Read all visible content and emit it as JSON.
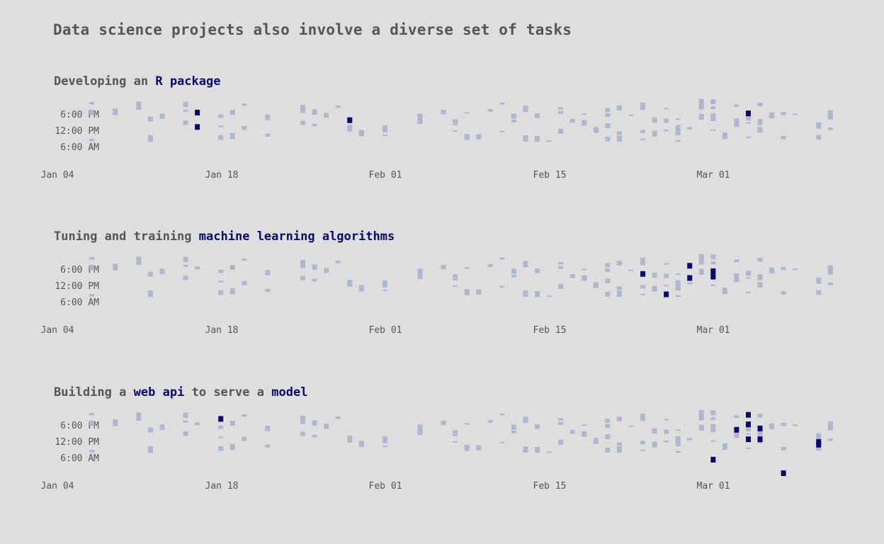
{
  "title": "Data science projects also involve a diverse set of tasks",
  "colors": {
    "background": "#dedede",
    "muted": "#b2b6cc",
    "highlight": "#0a0a6e",
    "text": "#555555"
  },
  "chart_data": [
    {
      "type": "scatter",
      "title_parts": [
        {
          "text": "Developing",
          "highlight": false
        },
        {
          "text": "an",
          "highlight": false
        },
        {
          "text": "R package",
          "highlight": true
        }
      ],
      "x_ticks": [
        "Jan 04",
        "Jan 18",
        "Feb 01",
        "Feb 15",
        "Mar 01"
      ],
      "y_ticks": [
        "6:00 PM",
        "12:00 PM",
        "6:00 AM"
      ],
      "highlight_days": [
        12,
        25,
        59
      ],
      "highlight_marks": [
        [
          12,
          18.8
        ],
        [
          12,
          13.5
        ],
        [
          25,
          16.0
        ],
        [
          59,
          18.5
        ]
      ]
    },
    {
      "type": "scatter",
      "title_parts": [
        {
          "text": "Tuning",
          "highlight": false
        },
        {
          "text": "and",
          "highlight": false
        },
        {
          "text": "training",
          "highlight": false
        },
        {
          "text": "machine",
          "highlight": true
        },
        {
          "text": "learning",
          "highlight": true
        },
        {
          "text": "algorithms",
          "highlight": true
        }
      ],
      "x_ticks": [
        "Jan 04",
        "Jan 18",
        "Feb 01",
        "Feb 15",
        "Mar 01"
      ],
      "y_ticks": [
        "6:00 PM",
        "12:00 PM",
        "6:00 AM"
      ],
      "highlight_days": [
        50,
        52,
        54,
        56
      ],
      "highlight_marks": [
        [
          50,
          16.5
        ],
        [
          52,
          9.0
        ],
        [
          54,
          19.5
        ],
        [
          54,
          15.0
        ],
        [
          56,
          17.5
        ],
        [
          56,
          15.5
        ]
      ]
    },
    {
      "type": "scatter",
      "title_parts": [
        {
          "text": "Building",
          "highlight": false
        },
        {
          "text": "a",
          "highlight": false
        },
        {
          "text": "web",
          "highlight": true
        },
        {
          "text": "api",
          "highlight": true
        },
        {
          "text": "to",
          "highlight": false
        },
        {
          "text": "serve",
          "highlight": false
        },
        {
          "text": "a",
          "highlight": false
        },
        {
          "text": "model",
          "highlight": true
        }
      ],
      "x_ticks": [
        "Jan 04",
        "Jan 18",
        "Feb 01",
        "Feb 15",
        "Mar 01"
      ],
      "y_ticks": [
        "6:00 PM",
        "12:00 PM",
        "6:00 AM"
      ],
      "highlight_days": [
        14,
        56,
        58,
        59,
        60,
        62,
        65
      ],
      "highlight_marks": [
        [
          14,
          20.5
        ],
        [
          56,
          5.5
        ],
        [
          58,
          16.5
        ],
        [
          59,
          22.0
        ],
        [
          59,
          18.5
        ],
        [
          59,
          13.0
        ],
        [
          60,
          17.0
        ],
        [
          60,
          13.0
        ],
        [
          62,
          0.5
        ],
        [
          65,
          11.0
        ],
        [
          65,
          12.0
        ]
      ]
    }
  ]
}
